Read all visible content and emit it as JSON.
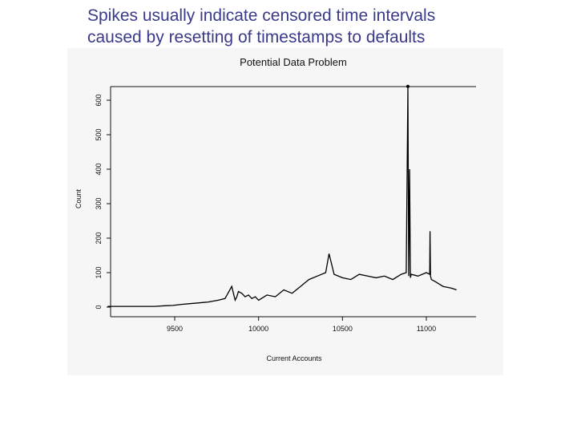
{
  "slide": {
    "title_line1": "Spikes usually indicate censored time intervals",
    "title_line2": "caused by resetting of timestamps to defaults"
  },
  "chart_data": {
    "type": "line",
    "title": "Potential Data Problem",
    "xlabel": "Current Accounts",
    "ylabel": "Count",
    "x_ticks": [
      9500,
      10000,
      10500,
      11000
    ],
    "y_ticks": [
      0,
      100,
      200,
      300,
      400,
      500,
      600
    ],
    "xlim": [
      9100,
      11300
    ],
    "ylim": [
      0,
      650
    ],
    "series": [
      {
        "x": [
          9100,
          9290,
          9380,
          9440,
          9490,
          9540,
          9590,
          9640,
          9700,
          9760,
          9800,
          9840,
          9860,
          9870,
          9880,
          9900,
          9920,
          9940,
          9960,
          9980,
          10000,
          10050,
          10100,
          10150,
          10200,
          10250,
          10300,
          10350,
          10400,
          10420,
          10450,
          10500,
          10550,
          10600,
          10650,
          10700,
          10750,
          10800,
          10850,
          10880,
          10890,
          10895,
          10900,
          10905,
          10910,
          10950,
          11000,
          11020,
          11022,
          11025,
          11030,
          11050,
          11100,
          11150,
          11180
        ],
        "y": [
          2,
          2,
          2,
          4,
          5,
          8,
          10,
          12,
          15,
          20,
          25,
          60,
          20,
          30,
          45,
          40,
          30,
          35,
          25,
          30,
          20,
          35,
          30,
          50,
          40,
          60,
          80,
          90,
          100,
          155,
          95,
          85,
          80,
          95,
          90,
          85,
          90,
          80,
          95,
          100,
          640,
          90,
          400,
          85,
          95,
          90,
          100,
          95,
          220,
          90,
          80,
          75,
          60,
          55,
          50
        ]
      }
    ]
  }
}
